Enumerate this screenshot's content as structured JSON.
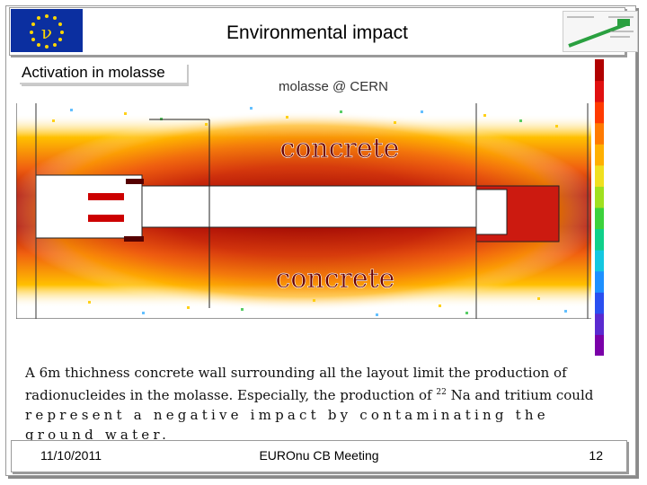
{
  "title": "Environmental impact",
  "section_label": "Activation in molasse",
  "image_label": "molasse @ CERN",
  "concrete_top": "concrete",
  "concrete_bottom": "concrete",
  "caption": {
    "line1": "A 6m thichness concrete wall surrounding all the layout limit the production of",
    "line2_pre": "radionucleides in the molasse. Especially, the production of ",
    "line2_sup": "22",
    "line2_post": " Na and tritium could",
    "line3": "represent a negative impact by contaminating the ground water."
  },
  "footer": {
    "date": "11/10/2011",
    "meeting": "EUROnu CB Meeting",
    "page": "12"
  },
  "logo_letter": "ν",
  "colors": {
    "eu_blue": "#0b2fa0",
    "eu_star": "#ffd700",
    "activation_dark": "#8b0000",
    "activation_mid": "#e84a1a",
    "activation_light": "#ffb000"
  },
  "colorbar_colors": [
    "#7a00a8",
    "#5a2ad0",
    "#2a4ff0",
    "#1e90ff",
    "#14c7e0",
    "#10d08a",
    "#3cd23c",
    "#a0e020",
    "#f0e020",
    "#ffb000",
    "#ff7a00",
    "#ff3a00",
    "#e01010",
    "#b00000"
  ]
}
